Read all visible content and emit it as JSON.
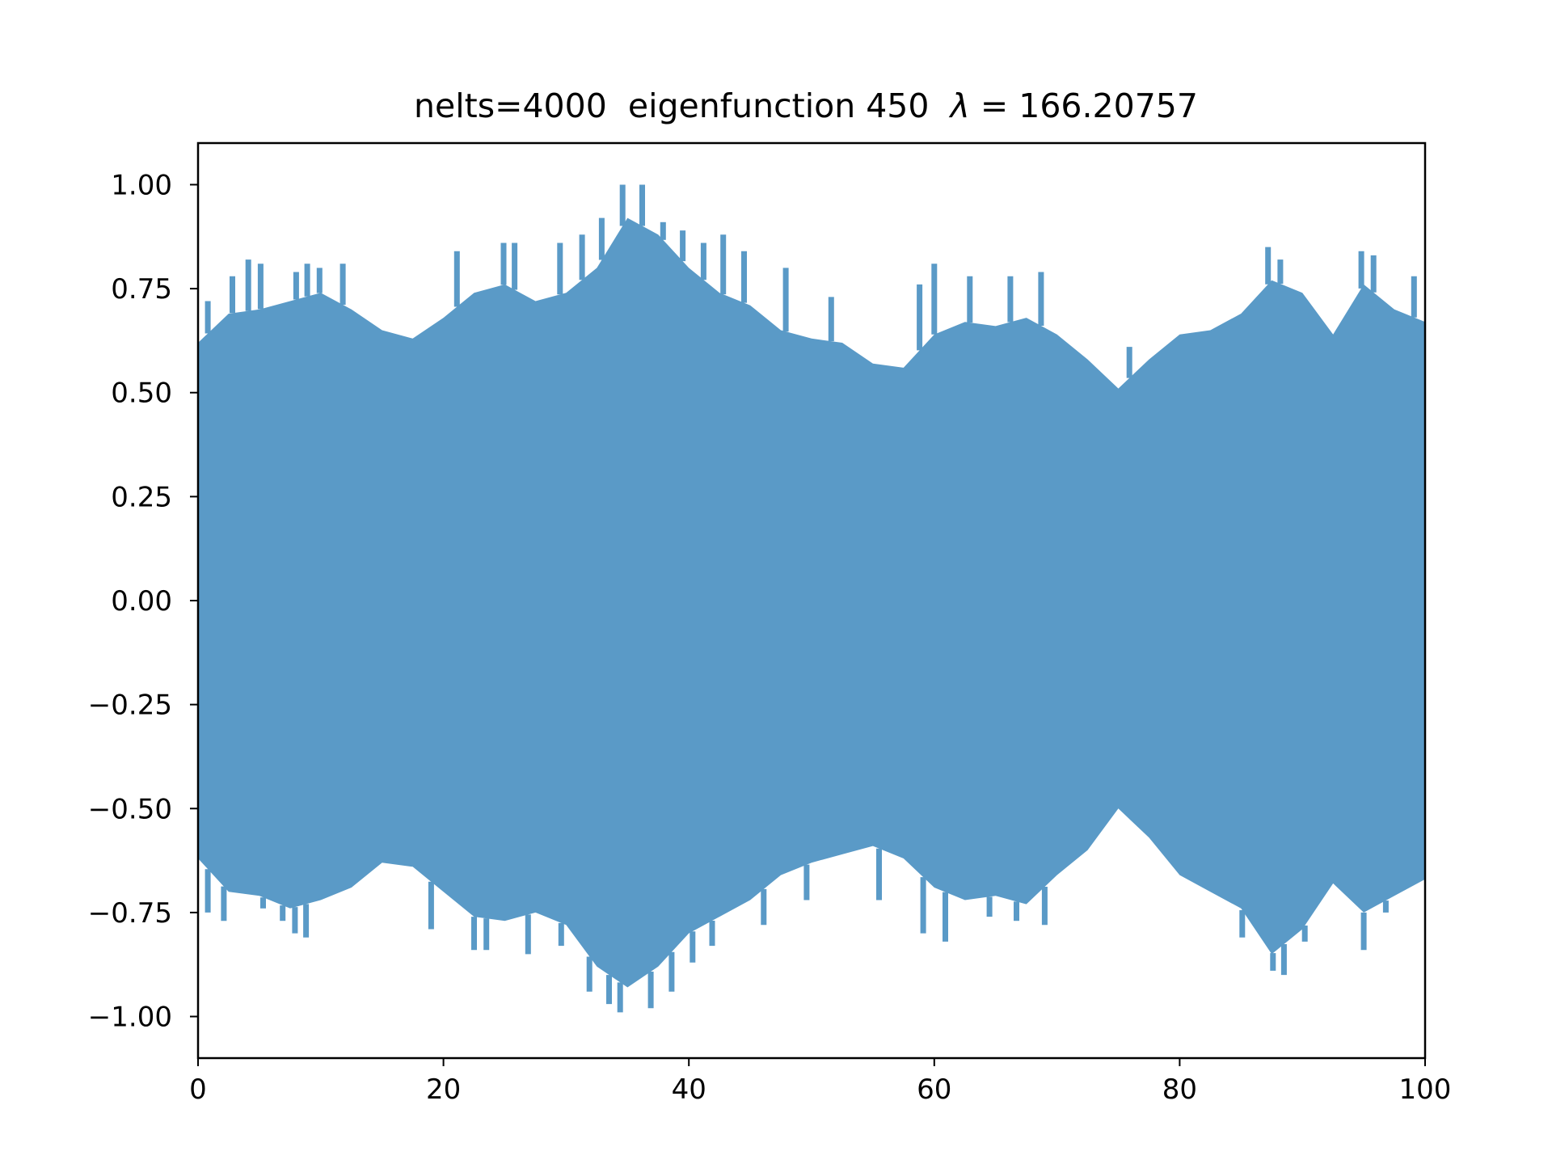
{
  "chart_data": {
    "type": "line",
    "title": "nelts=4000  eigenfunction 450  λ = 166.20757",
    "title_parts": {
      "prefix": "nelts=4000  eigenfunction 450  ",
      "symbol": "λ",
      "equals": " = ",
      "value": "166.20757"
    },
    "xlabel": "",
    "ylabel": "",
    "xlim": [
      0,
      100
    ],
    "ylim": [
      -1.1,
      1.1
    ],
    "grid": false,
    "series_color": "#5a9ac7",
    "x_ticks": [
      {
        "value": 0,
        "label": "0"
      },
      {
        "value": 20,
        "label": "20"
      },
      {
        "value": 40,
        "label": "40"
      },
      {
        "value": 60,
        "label": "60"
      },
      {
        "value": 80,
        "label": "80"
      },
      {
        "value": 100,
        "label": "100"
      }
    ],
    "y_ticks": [
      {
        "value": -1.0,
        "label": "−1.00"
      },
      {
        "value": -0.75,
        "label": "−0.75"
      },
      {
        "value": -0.5,
        "label": "−0.50"
      },
      {
        "value": -0.25,
        "label": "−0.25"
      },
      {
        "value": 0.0,
        "label": "0.00"
      },
      {
        "value": 0.25,
        "label": "0.25"
      },
      {
        "value": 0.5,
        "label": "0.50"
      },
      {
        "value": 0.75,
        "label": "0.75"
      },
      {
        "value": 1.0,
        "label": "1.00"
      }
    ],
    "envelope": {
      "x": [
        0,
        2.5,
        5,
        7.5,
        10,
        12.5,
        15,
        17.5,
        20,
        22.5,
        25,
        27.5,
        30,
        32.5,
        35,
        37.5,
        40,
        42.5,
        45,
        47.5,
        50,
        52.5,
        55,
        57.5,
        60,
        62.5,
        65,
        67.5,
        70,
        72.5,
        75,
        77.5,
        80,
        82.5,
        85,
        87.5,
        90,
        92.5,
        95,
        97.5,
        100
      ],
      "upper": [
        0.62,
        0.69,
        0.7,
        0.72,
        0.74,
        0.7,
        0.65,
        0.63,
        0.68,
        0.74,
        0.76,
        0.72,
        0.74,
        0.8,
        0.92,
        0.88,
        0.8,
        0.74,
        0.71,
        0.65,
        0.63,
        0.62,
        0.57,
        0.56,
        0.64,
        0.67,
        0.66,
        0.68,
        0.64,
        0.58,
        0.51,
        0.58,
        0.64,
        0.65,
        0.69,
        0.77,
        0.74,
        0.64,
        0.76,
        0.7,
        0.67
      ],
      "lower": [
        -0.62,
        -0.7,
        -0.71,
        -0.74,
        -0.72,
        -0.69,
        -0.63,
        -0.64,
        -0.7,
        -0.76,
        -0.77,
        -0.75,
        -0.78,
        -0.88,
        -0.93,
        -0.88,
        -0.8,
        -0.76,
        -0.72,
        -0.66,
        -0.63,
        -0.61,
        -0.59,
        -0.62,
        -0.69,
        -0.72,
        -0.71,
        -0.73,
        -0.66,
        -0.6,
        -0.5,
        -0.57,
        -0.66,
        -0.7,
        -0.74,
        -0.85,
        -0.79,
        -0.68,
        -0.75,
        -0.71,
        -0.67
      ]
    },
    "spikes": [
      {
        "x": 0.8,
        "y": 0.72
      },
      {
        "x": 2.8,
        "y": 0.78
      },
      {
        "x": 4.1,
        "y": 0.82
      },
      {
        "x": 5.1,
        "y": 0.81
      },
      {
        "x": 8,
        "y": 0.79
      },
      {
        "x": 8.9,
        "y": 0.81
      },
      {
        "x": 9.9,
        "y": 0.8
      },
      {
        "x": 11.8,
        "y": 0.81
      },
      {
        "x": 21.1,
        "y": 0.84
      },
      {
        "x": 24.9,
        "y": 0.86
      },
      {
        "x": 25.8,
        "y": 0.86
      },
      {
        "x": 29.5,
        "y": 0.86
      },
      {
        "x": 31.3,
        "y": 0.88
      },
      {
        "x": 32.9,
        "y": 0.92
      },
      {
        "x": 34.6,
        "y": 1.0
      },
      {
        "x": 36.2,
        "y": 1.0
      },
      {
        "x": 37.9,
        "y": 0.91
      },
      {
        "x": 39.5,
        "y": 0.89
      },
      {
        "x": 41.2,
        "y": 0.86
      },
      {
        "x": 42.8,
        "y": 0.88
      },
      {
        "x": 44.5,
        "y": 0.84
      },
      {
        "x": 47.9,
        "y": 0.8
      },
      {
        "x": 51.6,
        "y": 0.73
      },
      {
        "x": 58.8,
        "y": 0.76
      },
      {
        "x": 60,
        "y": 0.81
      },
      {
        "x": 62.9,
        "y": 0.78
      },
      {
        "x": 66.2,
        "y": 0.78
      },
      {
        "x": 68.7,
        "y": 0.79
      },
      {
        "x": 75.9,
        "y": 0.61
      },
      {
        "x": 87.2,
        "y": 0.85
      },
      {
        "x": 88.2,
        "y": 0.82
      },
      {
        "x": 94.8,
        "y": 0.84
      },
      {
        "x": 95.8,
        "y": 0.83
      },
      {
        "x": 99.1,
        "y": 0.78
      },
      {
        "x": 0.8,
        "y": -0.75
      },
      {
        "x": 2.1,
        "y": -0.77
      },
      {
        "x": 5.3,
        "y": -0.74
      },
      {
        "x": 6.9,
        "y": -0.77
      },
      {
        "x": 7.9,
        "y": -0.8
      },
      {
        "x": 8.8,
        "y": -0.81
      },
      {
        "x": 19,
        "y": -0.79
      },
      {
        "x": 22.5,
        "y": -0.84
      },
      {
        "x": 23.5,
        "y": -0.84
      },
      {
        "x": 26.9,
        "y": -0.85
      },
      {
        "x": 29.6,
        "y": -0.83
      },
      {
        "x": 31.9,
        "y": -0.94
      },
      {
        "x": 33.5,
        "y": -0.97
      },
      {
        "x": 34.4,
        "y": -0.99
      },
      {
        "x": 36.9,
        "y": -0.98
      },
      {
        "x": 38.6,
        "y": -0.94
      },
      {
        "x": 40.3,
        "y": -0.87
      },
      {
        "x": 41.9,
        "y": -0.83
      },
      {
        "x": 46.1,
        "y": -0.78
      },
      {
        "x": 49.6,
        "y": -0.72
      },
      {
        "x": 55.5,
        "y": -0.72
      },
      {
        "x": 59.1,
        "y": -0.8
      },
      {
        "x": 60.9,
        "y": -0.82
      },
      {
        "x": 64.5,
        "y": -0.76
      },
      {
        "x": 66.7,
        "y": -0.77
      },
      {
        "x": 69,
        "y": -0.78
      },
      {
        "x": 85.1,
        "y": -0.81
      },
      {
        "x": 87.6,
        "y": -0.89
      },
      {
        "x": 88.5,
        "y": -0.9
      },
      {
        "x": 90.2,
        "y": -0.82
      },
      {
        "x": 95,
        "y": -0.84
      },
      {
        "x": 96.8,
        "y": -0.75
      }
    ]
  }
}
